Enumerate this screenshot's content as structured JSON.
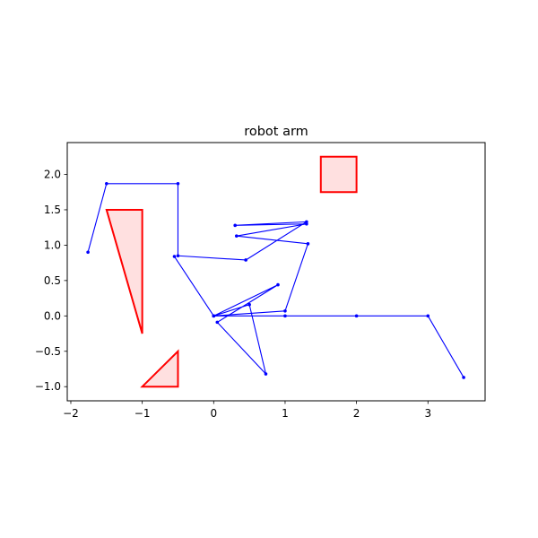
{
  "chart_data": {
    "type": "line",
    "title": "robot arm",
    "xlabel": "",
    "ylabel": "",
    "xlim": [
      -2.05,
      3.8
    ],
    "ylim": [
      -1.2,
      2.45
    ],
    "grid": false,
    "x_ticks": [
      -2,
      -1,
      0,
      1,
      2,
      3
    ],
    "x_tick_labels": [
      "−2",
      "−1",
      "0",
      "1",
      "2",
      "3"
    ],
    "y_ticks": [
      -1.0,
      -0.5,
      0.0,
      0.5,
      1.0,
      1.5,
      2.0
    ],
    "y_tick_labels": [
      "−1.0",
      "−0.5",
      "0.0",
      "0.5",
      "1.0",
      "1.5",
      "2.0"
    ],
    "line_color": "#0000ff",
    "obstacle_edge_color": "#ff0000",
    "obstacle_fill_color": "#ffe0e0",
    "series": [
      {
        "points": [
          [
            0,
            0
          ],
          [
            1,
            0
          ],
          [
            2,
            0
          ],
          [
            3,
            0
          ],
          [
            3.5,
            -0.87
          ]
        ]
      },
      {
        "points": [
          [
            0,
            0
          ],
          [
            1,
            0.07
          ],
          [
            1.32,
            1.02
          ],
          [
            0.32,
            1.13
          ],
          [
            1.3,
            1.3
          ],
          [
            0.3,
            1.28
          ],
          [
            1.3,
            1.33
          ],
          [
            0.45,
            0.79
          ],
          [
            -0.5,
            0.85
          ],
          [
            -0.5,
            1.87
          ],
          [
            -1.5,
            1.87
          ],
          [
            -1.76,
            0.9
          ]
        ]
      },
      {
        "points": [
          [
            0,
            0
          ],
          [
            0.9,
            0.44
          ],
          [
            0.05,
            -0.09
          ],
          [
            0.73,
            -0.82
          ],
          [
            0.5,
            0.16
          ],
          [
            0,
            0
          ],
          [
            -0.55,
            0.84
          ]
        ]
      }
    ],
    "obstacles": [
      {
        "points": [
          [
            -1.5,
            1.5
          ],
          [
            -1.0,
            1.5
          ],
          [
            -1.0,
            -0.25
          ]
        ]
      },
      {
        "points": [
          [
            -1.0,
            -1.0
          ],
          [
            -0.5,
            -1.0
          ],
          [
            -0.5,
            -0.5
          ]
        ]
      },
      {
        "points": [
          [
            1.5,
            1.75
          ],
          [
            2.0,
            1.75
          ],
          [
            2.0,
            2.25
          ],
          [
            1.5,
            2.25
          ]
        ]
      }
    ]
  }
}
